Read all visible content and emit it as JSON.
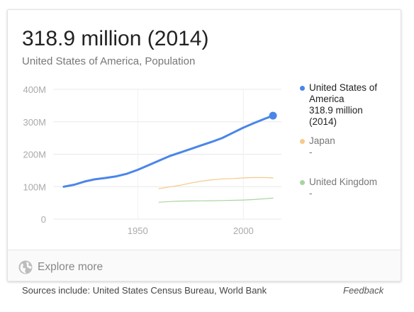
{
  "headline": "318.9 million (2014)",
  "subtitle": "United States of America, Population",
  "chart_data": {
    "type": "line",
    "x_ticks": [
      1950,
      2000
    ],
    "y_ticks": [
      0,
      100,
      200,
      300,
      400
    ],
    "y_tick_labels": [
      "0",
      "100M",
      "200M",
      "300M",
      "400M"
    ],
    "x_range": [
      1910,
      2018
    ],
    "y_range": [
      0,
      400
    ],
    "grid": true,
    "legend_position": "right",
    "series": [
      {
        "name": "United States of America",
        "value_label": "318.9 million",
        "year_label": "(2014)",
        "color": "#4a86e8",
        "x": [
          1915,
          1920,
          1925,
          1930,
          1935,
          1940,
          1945,
          1950,
          1955,
          1960,
          1965,
          1970,
          1975,
          1980,
          1985,
          1990,
          1995,
          2000,
          2005,
          2010,
          2014
        ],
        "y": [
          100,
          106,
          116,
          123,
          127,
          132,
          140,
          152,
          166,
          180,
          194,
          205,
          216,
          227,
          238,
          250,
          266,
          282,
          296,
          309,
          318.9
        ],
        "end_marker": true
      },
      {
        "name": "Japan",
        "value_label": "-",
        "color": "#f6c98a",
        "x": [
          1960,
          1965,
          1970,
          1975,
          1980,
          1985,
          1990,
          1995,
          2000,
          2005,
          2010,
          2014
        ],
        "y": [
          94,
          99,
          104,
          111,
          117,
          121,
          124,
          125,
          127,
          128,
          128,
          127
        ]
      },
      {
        "name": "United Kingdom",
        "value_label": "-",
        "color": "#a8d4a0",
        "x": [
          1960,
          1965,
          1970,
          1975,
          1980,
          1985,
          1990,
          1995,
          2000,
          2005,
          2010,
          2014
        ],
        "y": [
          52,
          54,
          55.6,
          56,
          56.3,
          56.6,
          57.2,
          58,
          58.9,
          60.4,
          62.8,
          64.6
        ]
      }
    ]
  },
  "footer": {
    "explore_label": "Explore more",
    "explore_icon": "globe-icon",
    "sources_text": "Sources include: United States Census Bureau, World Bank",
    "feedback_label": "Feedback"
  }
}
